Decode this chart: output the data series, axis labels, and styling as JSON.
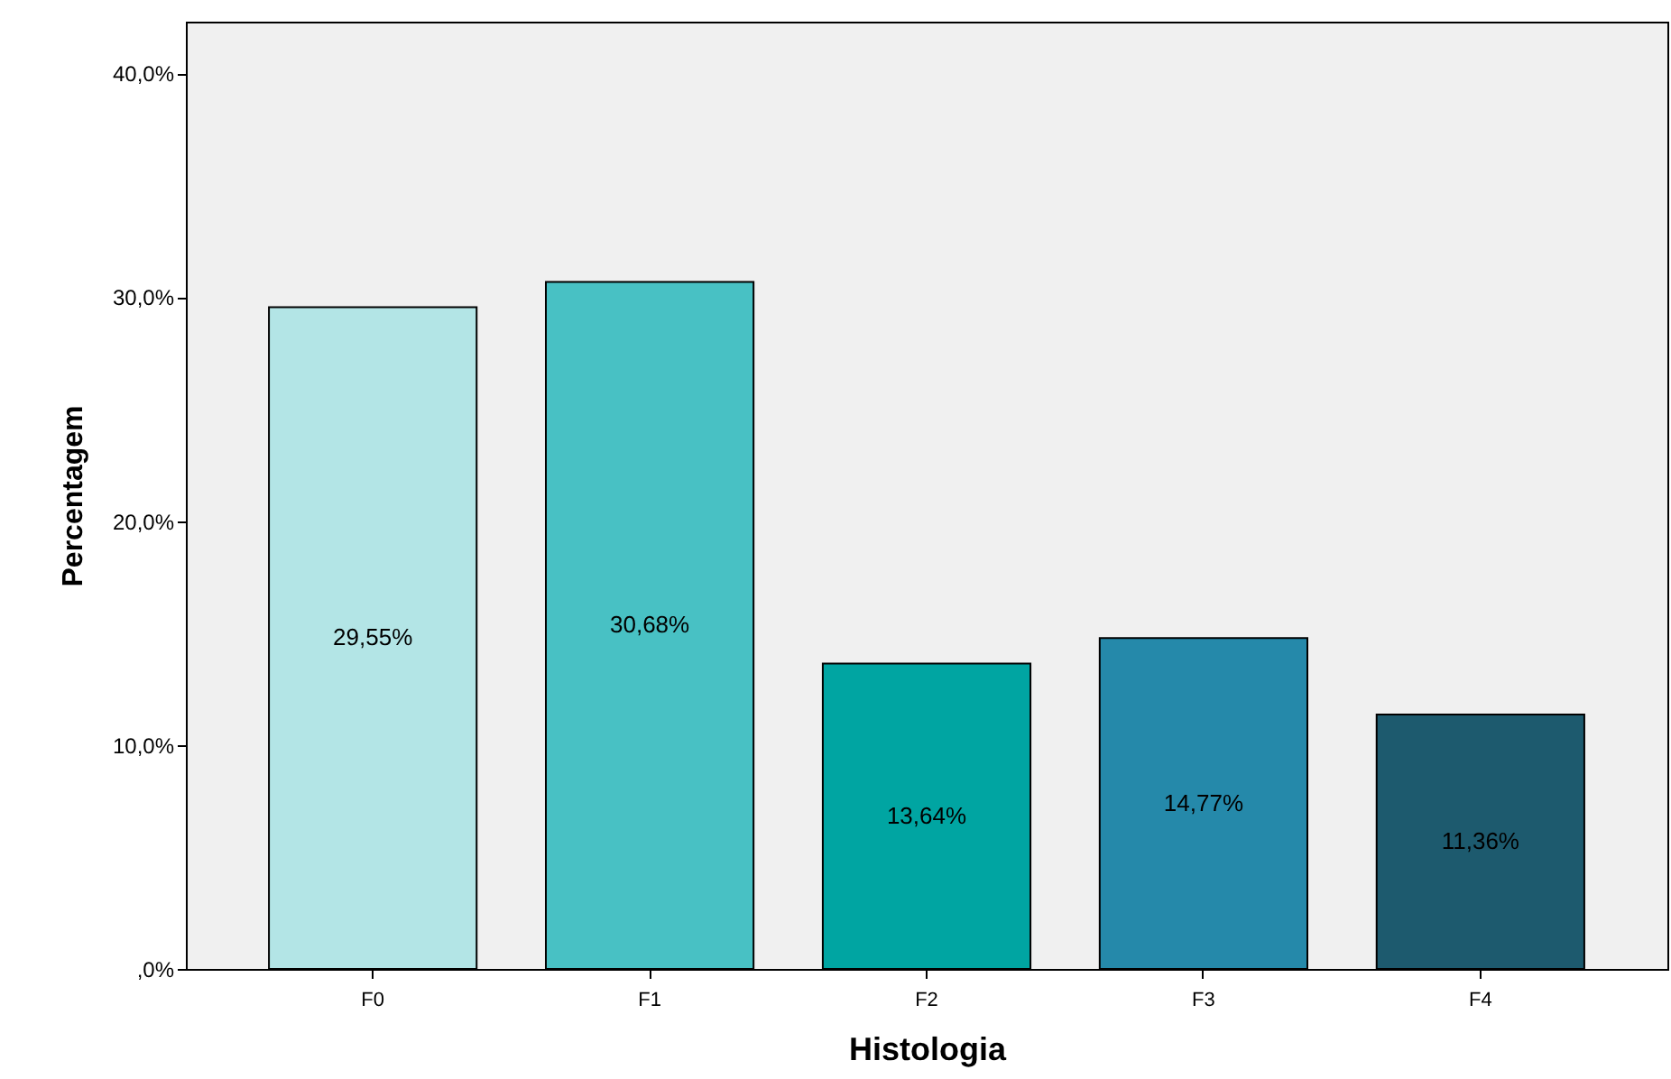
{
  "chart_data": {
    "type": "bar",
    "xlabel": "Histologia",
    "ylabel": "Percentagem",
    "categories": [
      "F0",
      "F1",
      "F2",
      "F3",
      "F4"
    ],
    "values": [
      29.55,
      30.68,
      13.64,
      14.77,
      11.36
    ],
    "colors": [
      "#b3e5e6",
      "#48c1c4",
      "#00a5a2",
      "#2589aa",
      "#1d5a6e"
    ],
    "value_labels": [
      "29,55%",
      "30,68%",
      "13,64%",
      "14,77%",
      "11,36%"
    ],
    "ylim": [
      0,
      42.3
    ],
    "yticks": [
      {
        "value": 0,
        "label": ",0%"
      },
      {
        "value": 10,
        "label": "10,0%"
      },
      {
        "value": 20,
        "label": "20,0%"
      },
      {
        "value": 30,
        "label": "30,0%"
      },
      {
        "value": 40,
        "label": "40,0%"
      }
    ],
    "grid": false
  }
}
